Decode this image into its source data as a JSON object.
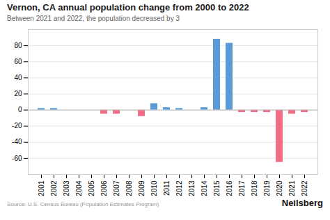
{
  "chart_data": {
    "type": "bar",
    "title": "Vernon, CA annual population change from 2000 to 2022",
    "subtitle": "Between 2021 and 2022, the population decreased by 3",
    "source": "Source: U.S. Census Bureau (Population Estimates Program)",
    "brand": "Neilsberg",
    "categories": [
      "2001",
      "2002",
      "2003",
      "2004",
      "2005",
      "2006",
      "2007",
      "2008",
      "2009",
      "2010",
      "2011",
      "2012",
      "2013",
      "2014",
      "2015",
      "2016",
      "2017",
      "2018",
      "2019",
      "2020",
      "2021",
      "2022"
    ],
    "values": [
      2,
      2,
      0,
      0,
      0,
      -5,
      -5,
      0,
      -8,
      8,
      3,
      2,
      0,
      3,
      88,
      83,
      -3,
      -3,
      -3,
      -65,
      -5,
      -3
    ],
    "colors": [
      "#5b9bd5",
      "#5b9bd5",
      "#5b9bd5",
      "#5b9bd5",
      "#5b9bd5",
      "#f16c85",
      "#f16c85",
      "#5b9bd5",
      "#f16c85",
      "#5b9bd5",
      "#5b9bd5",
      "#5b9bd5",
      "#5b9bd5",
      "#5b9bd5",
      "#5b9bd5",
      "#5b9bd5",
      "#f16c85",
      "#f16c85",
      "#f16c85",
      "#f16c85",
      "#f16c85",
      "#f16c85"
    ],
    "ylim": [
      -80,
      100
    ],
    "yticks": [
      -60,
      -40,
      -20,
      0,
      20,
      40,
      60,
      80
    ],
    "grid": true
  }
}
